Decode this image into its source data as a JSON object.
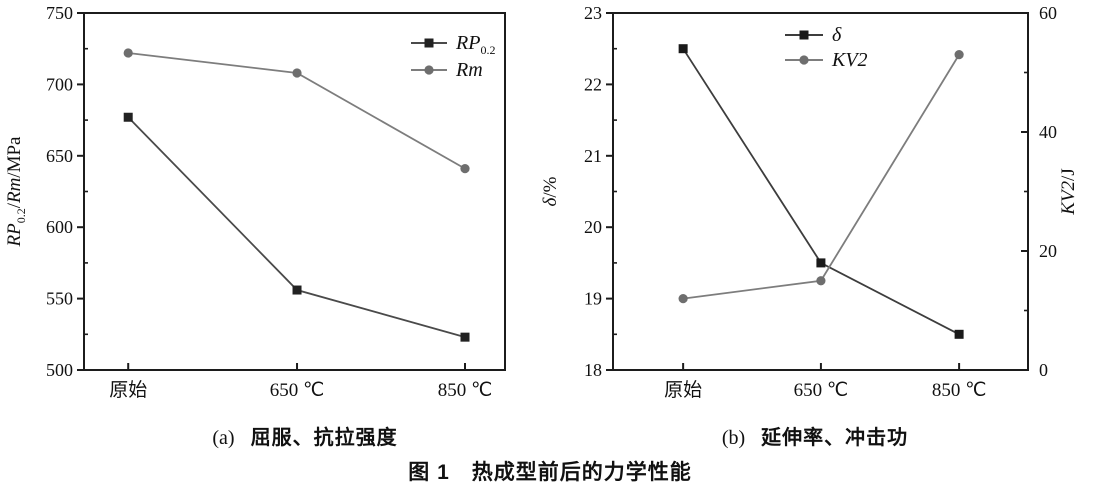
{
  "figure": {
    "caption_a": {
      "prefix": "(a)",
      "text": "屈服、抗拉强度"
    },
    "caption_b": {
      "prefix": "(b)",
      "text": "延伸率、冲击功"
    },
    "main_caption": {
      "prefix": "图 1",
      "text": "热成型前后的力学性能"
    }
  },
  "colors": {
    "axis": "#1c1c1c",
    "dark_marker": "#222222",
    "dark_line": "#4a4a4a",
    "gray_marker": "#6e6e6e",
    "gray_line": "#7d7d7d"
  },
  "chart_data": [
    {
      "id": "a",
      "type": "line",
      "title": "屈服、抗拉强度",
      "categories": [
        "原始",
        "650 ℃",
        "850 ℃"
      ],
      "ylabel": "RP0.2/Rm/MPa",
      "ylabel_rich": [
        {
          "t": "RP",
          "italic": true
        },
        {
          "t": "0.2",
          "sub": true
        },
        {
          "t": "/"
        },
        {
          "t": "Rm",
          "italic": true
        },
        {
          "t": "/MPa"
        }
      ],
      "ylim": [
        500,
        750
      ],
      "ymajor": 50,
      "yminor": 25,
      "grid": false,
      "legend_position": "top-right",
      "series": [
        {
          "name": "RP0.2",
          "label_rich": [
            {
              "t": "RP",
              "italic": true
            },
            {
              "t": "0.2",
              "sub": true
            }
          ],
          "marker": "square",
          "axis": "left",
          "values": [
            677,
            556,
            523
          ],
          "marker_color": "#222222",
          "line_color": "#4a4a4a"
        },
        {
          "name": "Rm",
          "label_rich": [
            {
              "t": "Rm",
              "italic": true
            }
          ],
          "marker": "circle",
          "axis": "left",
          "values": [
            722,
            708,
            641
          ],
          "marker_color": "#6e6e6e",
          "line_color": "#7d7d7d"
        }
      ]
    },
    {
      "id": "b",
      "type": "line",
      "title": "延伸率、冲击功",
      "categories": [
        "原始",
        "650 ℃",
        "850 ℃"
      ],
      "ylabel": "δ/%",
      "ylabel_rich": [
        {
          "t": "δ",
          "italic": true
        },
        {
          "t": "/%"
        }
      ],
      "ylim": [
        18,
        23
      ],
      "ymajor": 1,
      "yminor": 0.5,
      "grid": false,
      "legend_position": "top-center",
      "right_axis": {
        "ylabel": "KV2/J",
        "ylabel_rich": [
          {
            "t": "KV2",
            "italic": true
          },
          {
            "t": "/J"
          }
        ],
        "ylim": [
          0,
          60
        ],
        "ymajor": 20,
        "yminor": 10
      },
      "series": [
        {
          "name": "δ",
          "label_rich": [
            {
              "t": "δ",
              "italic": true
            }
          ],
          "marker": "square",
          "axis": "left",
          "values": [
            22.5,
            19.5,
            18.5
          ],
          "marker_color": "#1a1a1a",
          "line_color": "#3d3d3d"
        },
        {
          "name": "KV2",
          "label_rich": [
            {
              "t": "KV2",
              "italic": true
            }
          ],
          "marker": "circle",
          "axis": "right",
          "values": [
            12,
            15,
            53
          ],
          "marker_color": "#6e6e6e",
          "line_color": "#7d7d7d"
        }
      ]
    }
  ]
}
